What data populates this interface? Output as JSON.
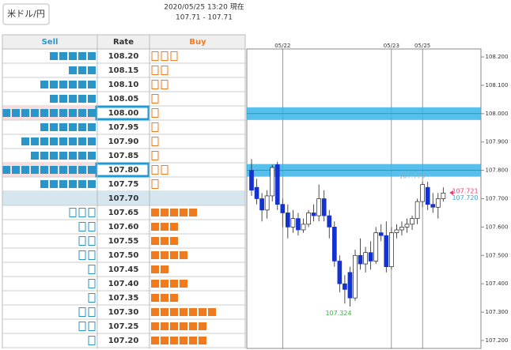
{
  "header": {
    "pair_button": "米ドル/円",
    "timestamp": "2020/05/25 13:20 現在",
    "quote": "107.71 - 107.71"
  },
  "order_book": {
    "columns": {
      "sell": "Sell",
      "rate": "Rate",
      "buy": "Buy"
    },
    "rows": [
      {
        "rate": "108.20",
        "sell": 5,
        "buy": 3
      },
      {
        "rate": "108.15",
        "sell": 3,
        "buy": 2
      },
      {
        "rate": "108.10",
        "sell": 6,
        "buy": 2
      },
      {
        "rate": "108.05",
        "sell": 5,
        "buy": 1
      },
      {
        "rate": "108.00",
        "sell": 10,
        "buy": 1,
        "highlight": true
      },
      {
        "rate": "107.95",
        "sell": 6,
        "buy": 1
      },
      {
        "rate": "107.90",
        "sell": 8,
        "buy": 1
      },
      {
        "rate": "107.85",
        "sell": 7,
        "buy": 1
      },
      {
        "rate": "107.80",
        "sell": 10,
        "buy": 2,
        "highlight": true
      },
      {
        "rate": "107.75",
        "sell": 6,
        "buy": 1
      },
      {
        "rate": "107.70",
        "sell": 0,
        "buy": 0,
        "current": true
      },
      {
        "rate": "107.65",
        "sell": 3,
        "buy": 5
      },
      {
        "rate": "107.60",
        "sell": 2,
        "buy": 3
      },
      {
        "rate": "107.55",
        "sell": 2,
        "buy": 3
      },
      {
        "rate": "107.50",
        "sell": 2,
        "buy": 4
      },
      {
        "rate": "107.45",
        "sell": 1,
        "buy": 2
      },
      {
        "rate": "107.40",
        "sell": 1,
        "buy": 4
      },
      {
        "rate": "107.35",
        "sell": 1,
        "buy": 3
      },
      {
        "rate": "107.30",
        "sell": 2,
        "buy": 7
      },
      {
        "rate": "107.25",
        "sell": 2,
        "buy": 6
      },
      {
        "rate": "107.20",
        "sell": 1,
        "buy": 6
      }
    ]
  },
  "chart_data": {
    "type": "candlestick",
    "categories": [
      null,
      null,
      null,
      null,
      null,
      null,
      "05/22",
      null,
      null,
      null,
      null,
      null,
      null,
      null,
      null,
      null,
      null,
      null,
      null,
      null,
      null,
      null,
      null,
      null,
      null,
      null,
      null,
      "05/23",
      null,
      null,
      null,
      null,
      null,
      "05/25",
      null,
      null,
      null,
      null
    ],
    "candles": [
      {
        "open": 107.8,
        "high": 107.84,
        "low": 107.71,
        "close": 107.73
      },
      {
        "open": 107.74,
        "high": 107.77,
        "low": 107.68,
        "close": 107.7
      },
      {
        "open": 107.7,
        "high": 107.72,
        "low": 107.62,
        "close": 107.66
      },
      {
        "open": 107.66,
        "high": 107.73,
        "low": 107.63,
        "close": 107.71
      },
      {
        "open": 107.71,
        "high": 107.82,
        "low": 107.69,
        "close": 107.81
      },
      {
        "open": 107.82,
        "high": 107.83,
        "low": 107.66,
        "close": 107.68
      },
      {
        "open": 107.68,
        "high": 107.7,
        "low": 107.6,
        "close": 107.65
      },
      {
        "open": 107.65,
        "high": 107.68,
        "low": 107.56,
        "close": 107.6
      },
      {
        "open": 107.6,
        "high": 107.66,
        "low": 107.58,
        "close": 107.63
      },
      {
        "open": 107.63,
        "high": 107.65,
        "low": 107.57,
        "close": 107.59
      },
      {
        "open": 107.59,
        "high": 107.63,
        "low": 107.58,
        "close": 107.61
      },
      {
        "open": 107.61,
        "high": 107.66,
        "low": 107.6,
        "close": 107.65
      },
      {
        "open": 107.65,
        "high": 107.68,
        "low": 107.62,
        "close": 107.64
      },
      {
        "open": 107.64,
        "high": 107.75,
        "low": 107.62,
        "close": 107.7
      },
      {
        "open": 107.7,
        "high": 107.73,
        "low": 107.62,
        "close": 107.64
      },
      {
        "open": 107.64,
        "high": 107.66,
        "low": 107.56,
        "close": 107.6
      },
      {
        "open": 107.6,
        "high": 107.62,
        "low": 107.46,
        "close": 107.48
      },
      {
        "open": 107.48,
        "high": 107.5,
        "low": 107.37,
        "close": 107.4
      },
      {
        "open": 107.4,
        "high": 107.43,
        "low": 107.33,
        "close": 107.38
      },
      {
        "open": 107.44,
        "high": 107.46,
        "low": 107.32,
        "close": 107.35
      },
      {
        "open": 107.35,
        "high": 107.52,
        "low": 107.34,
        "close": 107.5
      },
      {
        "open": 107.5,
        "high": 107.56,
        "low": 107.45,
        "close": 107.47
      },
      {
        "open": 107.47,
        "high": 107.53,
        "low": 107.44,
        "close": 107.51
      },
      {
        "open": 107.51,
        "high": 107.55,
        "low": 107.45,
        "close": 107.48
      },
      {
        "open": 107.48,
        "high": 107.6,
        "low": 107.47,
        "close": 107.58
      },
      {
        "open": 107.58,
        "high": 107.61,
        "low": 107.55,
        "close": 107.57
      },
      {
        "open": 107.57,
        "high": 107.62,
        "low": 107.44,
        "close": 107.46
      },
      {
        "open": 107.46,
        "high": 107.6,
        "low": 107.45,
        "close": 107.58
      },
      {
        "open": 107.58,
        "high": 107.61,
        "low": 107.56,
        "close": 107.59
      },
      {
        "open": 107.59,
        "high": 107.62,
        "low": 107.57,
        "close": 107.6
      },
      {
        "open": 107.6,
        "high": 107.63,
        "low": 107.58,
        "close": 107.61
      },
      {
        "open": 107.61,
        "high": 107.64,
        "low": 107.59,
        "close": 107.63
      },
      {
        "open": 107.63,
        "high": 107.7,
        "low": 107.61,
        "close": 107.69
      },
      {
        "open": 107.69,
        "high": 107.76,
        "low": 107.67,
        "close": 107.75
      },
      {
        "open": 107.74,
        "high": 107.76,
        "low": 107.66,
        "close": 107.68
      },
      {
        "open": 107.68,
        "high": 107.72,
        "low": 107.65,
        "close": 107.67
      },
      {
        "open": 107.67,
        "high": 107.72,
        "low": 107.63,
        "close": 107.7
      },
      {
        "open": 107.7,
        "high": 107.74,
        "low": 107.69,
        "close": 107.72
      }
    ],
    "ylim": [
      107.172,
      108.228
    ],
    "yticks": [
      {
        "value": 108.2,
        "label": "108.200"
      },
      {
        "value": 108.1,
        "label": "108.100"
      },
      {
        "value": 108.0,
        "label": "108.000"
      },
      {
        "value": 107.9,
        "label": "107.900"
      },
      {
        "value": 107.8,
        "label": "107.800"
      },
      {
        "value": 107.7,
        "label": "107.700"
      },
      {
        "value": 107.6,
        "label": "107.600"
      },
      {
        "value": 107.5,
        "label": "107.500"
      },
      {
        "value": 107.4,
        "label": "107.400"
      },
      {
        "value": 107.3,
        "label": "107.300"
      },
      {
        "value": 107.2,
        "label": "107.200"
      }
    ],
    "bands": [
      108.0,
      107.8
    ],
    "annotations": [
      {
        "value": 107.779,
        "label": "107.779",
        "color": "#9ab"
      },
      {
        "value": 107.721,
        "label": "107.721",
        "color": "#e0407a"
      },
      {
        "value": 107.72,
        "label": "107.720",
        "color": "#3aa0e0"
      },
      {
        "value": 107.324,
        "label": "107.324",
        "color": "#3cb043"
      }
    ]
  }
}
